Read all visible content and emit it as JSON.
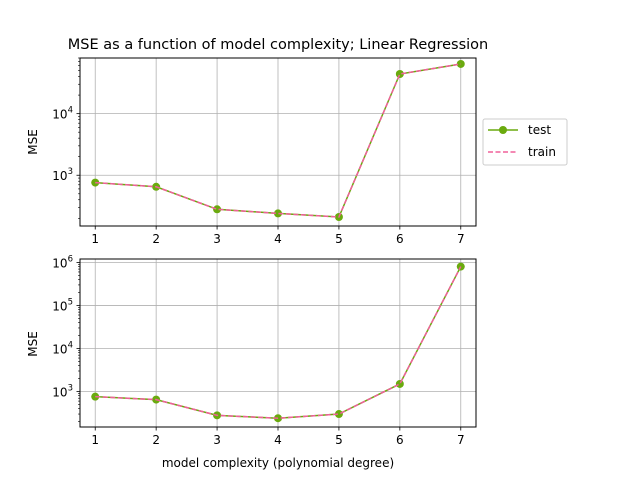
{
  "chart_data": [
    {
      "type": "line",
      "title": "MSE as a function of model complexity; Linear Regression",
      "xlabel": "",
      "ylabel": "MSE",
      "yscale": "log",
      "xlim": [
        0.75,
        7.25
      ],
      "ylim": [
        150,
        80000
      ],
      "x": [
        1,
        2,
        3,
        4,
        5,
        6,
        7
      ],
      "xticks": [
        "1",
        "2",
        "3",
        "4",
        "5",
        "6",
        "7"
      ],
      "yticks": [
        {
          "value": 1000,
          "base": "10",
          "exp": "3"
        },
        {
          "value": 10000,
          "base": "10",
          "exp": "4"
        }
      ],
      "grid": true,
      "legend": "right, outside axes",
      "series": [
        {
          "name": "test",
          "color": "#6aaa0e",
          "style": "solid-with-markers",
          "values": [
            760,
            650,
            280,
            240,
            210,
            44000,
            64000
          ]
        },
        {
          "name": "train",
          "color": "#f0609a",
          "style": "dashed",
          "values": [
            760,
            650,
            280,
            240,
            210,
            44000,
            64000
          ]
        }
      ]
    },
    {
      "type": "line",
      "title": "",
      "xlabel": "model complexity (polynomial degree)",
      "ylabel": "MSE",
      "yscale": "log",
      "xlim": [
        0.75,
        7.25
      ],
      "ylim": [
        150,
        1200000
      ],
      "x": [
        1,
        2,
        3,
        4,
        5,
        6,
        7
      ],
      "xticks": [
        "1",
        "2",
        "3",
        "4",
        "5",
        "6",
        "7"
      ],
      "yticks": [
        {
          "value": 1000,
          "base": "10",
          "exp": "3"
        },
        {
          "value": 10000,
          "base": "10",
          "exp": "4"
        },
        {
          "value": 100000,
          "base": "10",
          "exp": "5"
        },
        {
          "value": 1000000,
          "base": "10",
          "exp": "6"
        }
      ],
      "grid": true,
      "series": [
        {
          "name": "test",
          "color": "#6aaa0e",
          "style": "solid-with-markers",
          "values": [
            760,
            650,
            280,
            240,
            300,
            1500,
            800000
          ]
        },
        {
          "name": "train",
          "color": "#f0609a",
          "style": "dashed",
          "values": [
            760,
            650,
            280,
            240,
            300,
            1500,
            800000
          ]
        }
      ]
    }
  ]
}
